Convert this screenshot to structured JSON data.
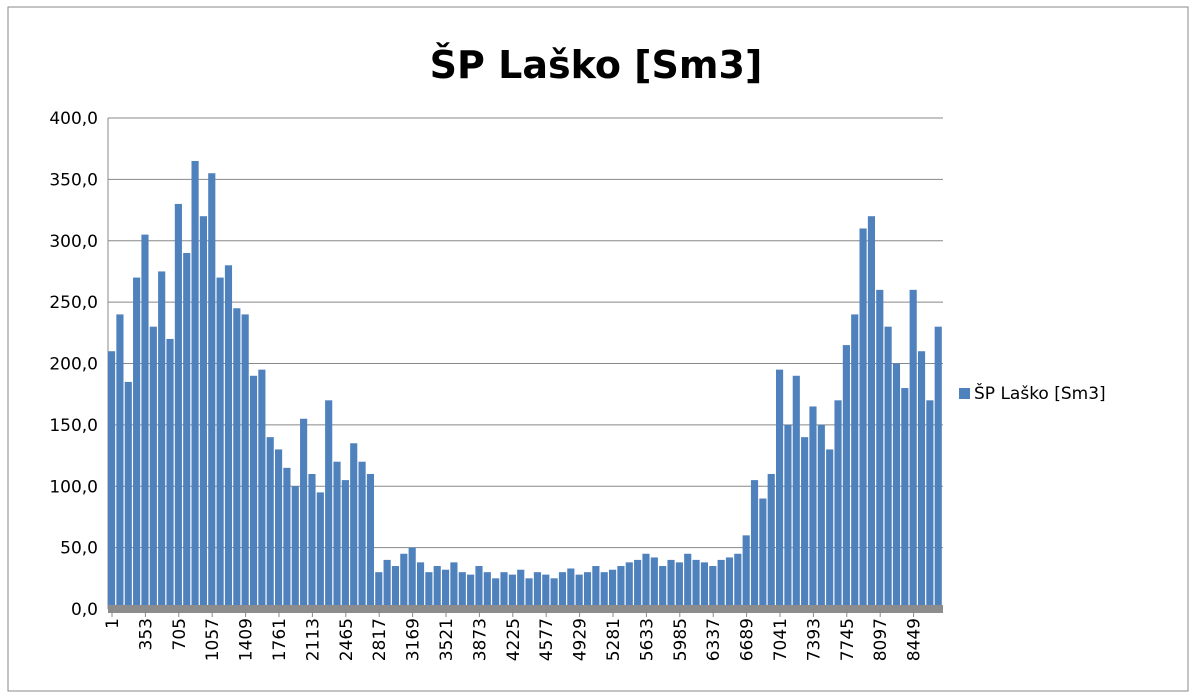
{
  "chart_data": {
    "type": "bar",
    "title": "ŠP Laško [Sm3]",
    "series": [
      {
        "name": "ŠP Laško [Sm3]",
        "color": "#4f81bd",
        "values": [
          210,
          240,
          185,
          270,
          305,
          230,
          275,
          220,
          330,
          290,
          365,
          320,
          355,
          270,
          280,
          245,
          240,
          190,
          195,
          140,
          130,
          115,
          100,
          155,
          110,
          95,
          170,
          120,
          105,
          135,
          120,
          110,
          30,
          40,
          35,
          45,
          50,
          38,
          30,
          35,
          32,
          38,
          30,
          28,
          35,
          30,
          25,
          30,
          28,
          32,
          25,
          30,
          28,
          25,
          30,
          33,
          28,
          30,
          35,
          30,
          32,
          35,
          38,
          40,
          45,
          42,
          35,
          40,
          38,
          45,
          40,
          38,
          35,
          40,
          42,
          45,
          60,
          105,
          90,
          110,
          195,
          150,
          190,
          140,
          165,
          150,
          130,
          170,
          215,
          240,
          310,
          320,
          260,
          230,
          200,
          180,
          260,
          210,
          170,
          230
        ]
      }
    ],
    "x": [
      1,
      89,
      177,
      265,
      353,
      441,
      529,
      617,
      705,
      793,
      881,
      969,
      1057,
      1145,
      1233,
      1321,
      1409,
      1497,
      1585,
      1673,
      1761,
      1849,
      1937,
      2025,
      2113,
      2201,
      2289,
      2377,
      2465,
      2553,
      2641,
      2729,
      2817,
      2905,
      2993,
      3081,
      3169,
      3257,
      3345,
      3433,
      3521,
      3609,
      3697,
      3785,
      3873,
      3961,
      4049,
      4137,
      4225,
      4313,
      4401,
      4489,
      4577,
      4665,
      4753,
      4841,
      4929,
      5017,
      5105,
      5193,
      5281,
      5369,
      5457,
      5545,
      5633,
      5721,
      5809,
      5897,
      5985,
      6073,
      6161,
      6249,
      6337,
      6425,
      6513,
      6601,
      6689,
      6777,
      6865,
      6953,
      7041,
      7129,
      7217,
      7305,
      7393,
      7481,
      7569,
      7657,
      7745,
      7833,
      7921,
      8009,
      8097,
      8185,
      8273,
      8361,
      8449,
      8537,
      8625,
      8713
    ],
    "xlim": [
      1,
      8801
    ],
    "xticks": [
      1,
      353,
      705,
      1057,
      1409,
      1761,
      2113,
      2465,
      2817,
      3169,
      3521,
      3873,
      4225,
      4577,
      4929,
      5281,
      5633,
      5985,
      6337,
      6689,
      7041,
      7393,
      7745,
      8097,
      8449
    ],
    "ylim": [
      0,
      400
    ],
    "yticks": [
      {
        "value": 0,
        "label": "0,0"
      },
      {
        "value": 50,
        "label": "50,0"
      },
      {
        "value": 100,
        "label": "100,0"
      },
      {
        "value": 150,
        "label": "150,0"
      },
      {
        "value": 200,
        "label": "200,0"
      },
      {
        "value": 250,
        "label": "250,0"
      },
      {
        "value": 300,
        "label": "300,0"
      },
      {
        "value": 350,
        "label": "350,0"
      },
      {
        "value": 400,
        "label": "400,0"
      }
    ],
    "grid": true,
    "legend": "right"
  }
}
